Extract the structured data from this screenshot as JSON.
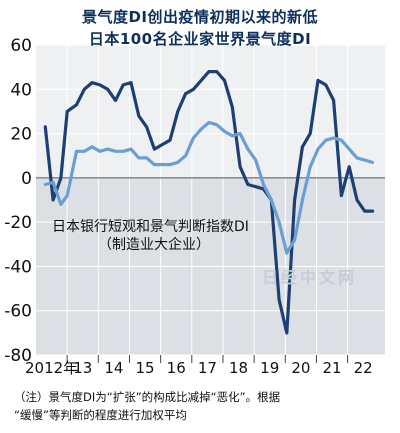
{
  "chart_data": {
    "type": "line",
    "title": "景气度DI创出疫情初期以来的新低",
    "subtitle": "日本100名企业家世界景气度DI",
    "series_label_lines": [
      "日本银行短观和景气判断指数DI",
      "（制造业大企业）"
    ],
    "watermark": "日经中文网",
    "y_ticks": [
      60,
      40,
      20,
      0,
      -20,
      -40,
      -60,
      -80
    ],
    "ylim": [
      -80,
      60
    ],
    "xlim": [
      2012.0,
      2023.2
    ],
    "x_tick_labels": [
      {
        "label": "2012年",
        "x": 2012.5
      },
      {
        "label": "13",
        "x": 2013.5
      },
      {
        "label": "14",
        "x": 2014.5
      },
      {
        "label": "15",
        "x": 2015.5
      },
      {
        "label": "16",
        "x": 2016.5
      },
      {
        "label": "17",
        "x": 2017.5
      },
      {
        "label": "18",
        "x": 2018.5
      },
      {
        "label": "19",
        "x": 2019.5
      },
      {
        "label": "20",
        "x": 2020.5
      },
      {
        "label": "21",
        "x": 2021.5
      },
      {
        "label": "22",
        "x": 2022.5
      }
    ],
    "year_boundaries": [
      2013,
      2014,
      2015,
      2016,
      2017,
      2018,
      2019,
      2020,
      2021,
      2022
    ],
    "series": [
      {
        "color": "#1e3f73",
        "x": [
          2012.3,
          2012.55,
          2012.8,
          2013.0,
          2013.3,
          2013.55,
          2013.8,
          2014.05,
          2014.3,
          2014.55,
          2014.8,
          2015.05,
          2015.3,
          2015.55,
          2015.8,
          2016.05,
          2016.3,
          2016.55,
          2016.8,
          2017.05,
          2017.3,
          2017.55,
          2017.8,
          2018.05,
          2018.3,
          2018.55,
          2018.8,
          2019.05,
          2019.3,
          2019.55,
          2019.8,
          2020.05,
          2020.3,
          2020.55,
          2020.8,
          2021.05,
          2021.3,
          2021.55,
          2021.8,
          2022.05,
          2022.3,
          2022.55,
          2022.8
        ],
        "y": [
          23,
          -10,
          0,
          30,
          33,
          40,
          43,
          42,
          40,
          35,
          42,
          43,
          28,
          23,
          13,
          15,
          17,
          30,
          38,
          40,
          44,
          48,
          48,
          44,
          32,
          5,
          -3,
          -4,
          -5,
          -10,
          -55,
          -70,
          -10,
          14,
          20,
          44,
          42,
          35,
          -8,
          5,
          -10,
          -15,
          -15
        ]
      },
      {
        "color": "#6a9fd3",
        "x": [
          2012.3,
          2012.55,
          2012.8,
          2013.0,
          2013.3,
          2013.55,
          2013.8,
          2014.05,
          2014.3,
          2014.55,
          2014.8,
          2015.05,
          2015.3,
          2015.55,
          2015.8,
          2016.05,
          2016.3,
          2016.55,
          2016.8,
          2017.05,
          2017.3,
          2017.55,
          2017.8,
          2018.05,
          2018.3,
          2018.55,
          2018.8,
          2019.05,
          2019.3,
          2019.55,
          2019.8,
          2020.05,
          2020.3,
          2020.55,
          2020.8,
          2021.05,
          2021.3,
          2021.55,
          2021.8,
          2022.05,
          2022.3,
          2022.55,
          2022.8
        ],
        "y": [
          -3,
          -2,
          -12,
          -8,
          12,
          12,
          14,
          12,
          13,
          12,
          12,
          13,
          9,
          9,
          6,
          6,
          6,
          7,
          10,
          18,
          22,
          25,
          24,
          21,
          19,
          20,
          13,
          8,
          -3,
          -10,
          -20,
          -34,
          -28,
          -10,
          5,
          13,
          17,
          18,
          17,
          13,
          9,
          8,
          7
        ]
      }
    ]
  },
  "notes": [
    "（注）景气度DI为“扩张”的构成比减掉“恶化”。根据",
    "“缓慢”等判断的程度进行加权平均"
  ]
}
